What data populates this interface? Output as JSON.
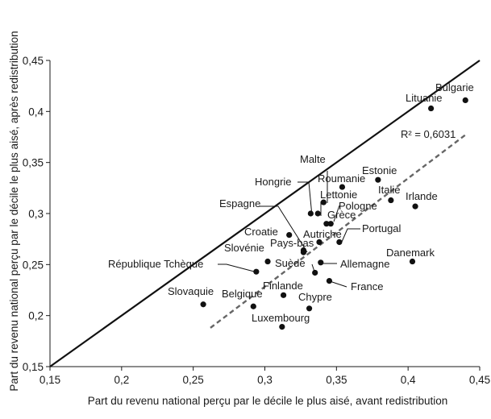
{
  "chart_data": {
    "type": "scatter",
    "xlabel": "Part du revenu national perçu par le décile le plus aisé, avant redistribution",
    "ylabel": "Part du revenu national perçu par le décile le plus aisé, après redistribution",
    "xlim": [
      0.15,
      0.45
    ],
    "ylim": [
      0.15,
      0.45
    ],
    "xticks": [
      0.15,
      0.2,
      0.25,
      0.3,
      0.35,
      0.4,
      0.45
    ],
    "yticks": [
      0.15,
      0.2,
      0.25,
      0.3,
      0.35,
      0.4,
      0.45
    ],
    "xtick_labels": [
      "0,15",
      "0,2",
      "0,25",
      "0,3",
      "0,35",
      "0,4",
      "0,45"
    ],
    "ytick_labels": [
      "0,15",
      "0,2",
      "0,25",
      "0,3",
      "0,35",
      "0,4",
      "0,45"
    ],
    "grid": false,
    "reference_line": {
      "type": "identity",
      "x": [
        0.15,
        0.45
      ],
      "y": [
        0.15,
        0.45
      ],
      "style": "solid"
    },
    "trend_line": {
      "x": [
        0.262,
        0.44
      ],
      "y": [
        0.188,
        0.377
      ],
      "style": "dashed",
      "label": "R² = 0,6031"
    },
    "points": [
      {
        "name": "Bulgarie",
        "x": 0.44,
        "y": 0.411
      },
      {
        "name": "Lituanie",
        "x": 0.416,
        "y": 0.403
      },
      {
        "name": "Irlande",
        "x": 0.405,
        "y": 0.307
      },
      {
        "name": "Danemark",
        "x": 0.403,
        "y": 0.253
      },
      {
        "name": "Estonie",
        "x": 0.379,
        "y": 0.333
      },
      {
        "name": "Italie",
        "x": 0.388,
        "y": 0.313
      },
      {
        "name": "Malte",
        "x": 0.341,
        "y": 0.311
      },
      {
        "name": "Roumanie",
        "x": 0.354,
        "y": 0.326
      },
      {
        "name": "Hongrie",
        "x": 0.332,
        "y": 0.3
      },
      {
        "name": "Lettonie",
        "x": 0.337,
        "y": 0.3
      },
      {
        "name": "Espagne",
        "x": 0.327,
        "y": 0.264
      },
      {
        "name": "Pologne",
        "x": 0.346,
        "y": 0.29
      },
      {
        "name": "Grèce",
        "x": 0.343,
        "y": 0.29
      },
      {
        "name": "Portugal",
        "x": 0.352,
        "y": 0.272
      },
      {
        "name": "Croatie",
        "x": 0.317,
        "y": 0.279
      },
      {
        "name": "Autriche",
        "x": 0.338,
        "y": 0.272
      },
      {
        "name": "Pays-bas",
        "x": 0.327,
        "y": 0.262
      },
      {
        "name": "Slovénie",
        "x": 0.302,
        "y": 0.253
      },
      {
        "name": "Suède",
        "x": 0.335,
        "y": 0.242
      },
      {
        "name": "Allemagne",
        "x": 0.339,
        "y": 0.252
      },
      {
        "name": "République Tchèque",
        "x": 0.294,
        "y": 0.243
      },
      {
        "name": "France",
        "x": 0.345,
        "y": 0.234
      },
      {
        "name": "Finlande",
        "x": 0.313,
        "y": 0.22
      },
      {
        "name": "Chypre",
        "x": 0.331,
        "y": 0.207
      },
      {
        "name": "Slovaquie",
        "x": 0.257,
        "y": 0.211
      },
      {
        "name": "Belgique",
        "x": 0.292,
        "y": 0.209
      },
      {
        "name": "Luxembourg",
        "x": 0.312,
        "y": 0.189
      }
    ]
  }
}
